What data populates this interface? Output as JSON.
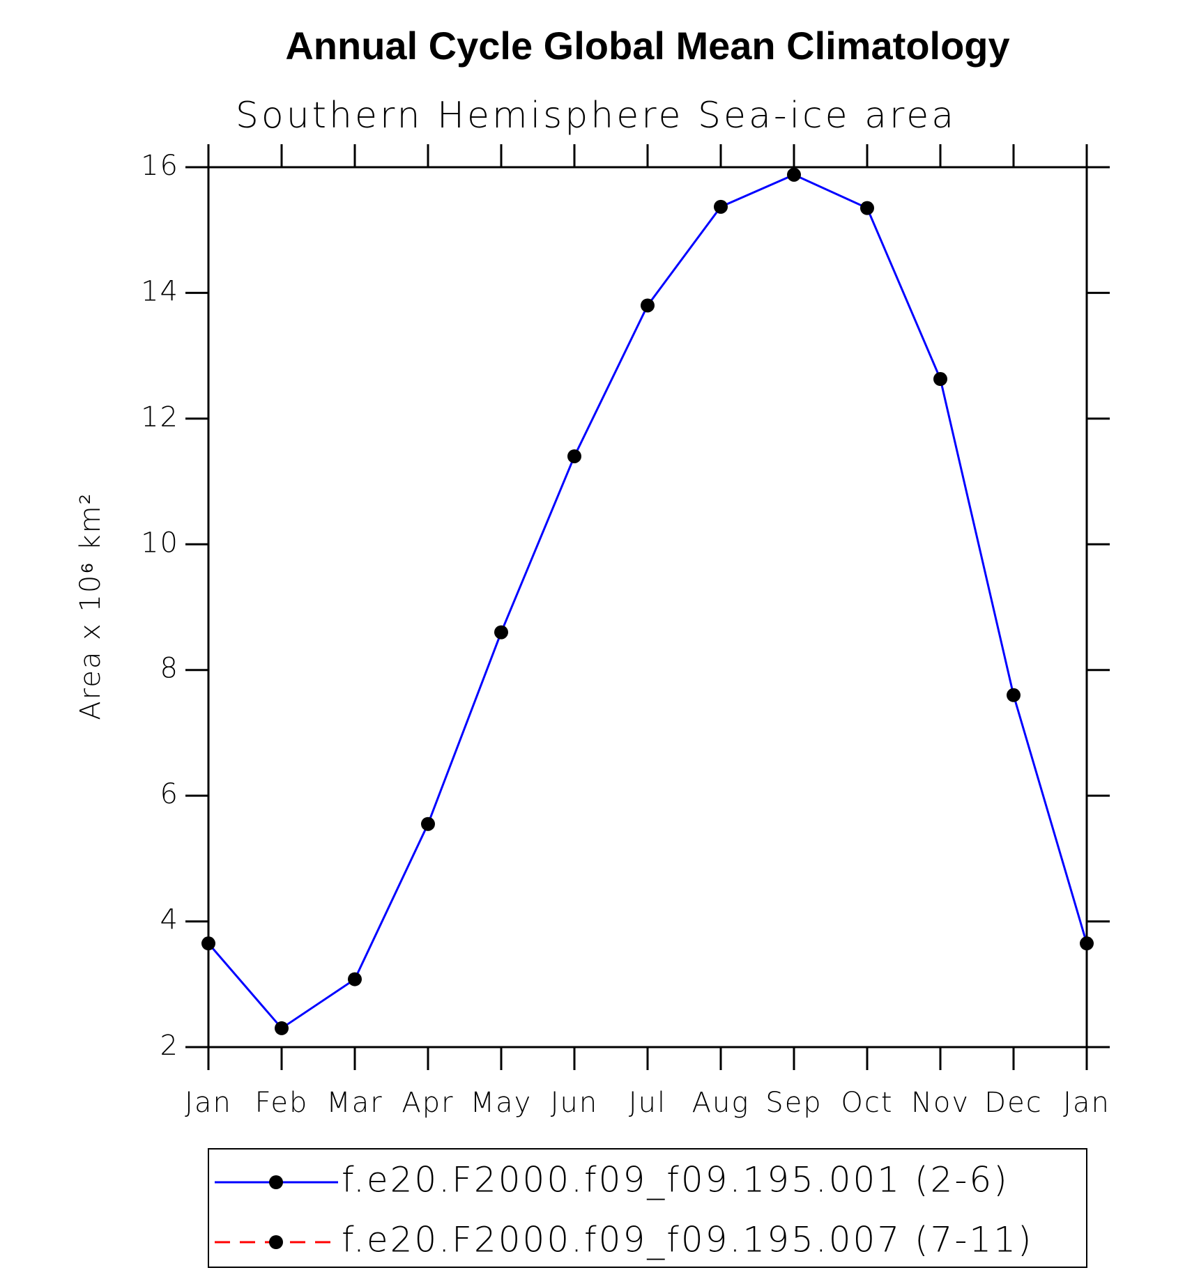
{
  "chart_data": {
    "type": "line",
    "title": "Annual Cycle Global Mean Climatology",
    "subtitle": "Southern Hemisphere Sea-ice area",
    "y_label": "Area x 10⁶ km²",
    "categories": [
      "Jan",
      "Feb",
      "Mar",
      "Apr",
      "May",
      "Jun",
      "Jul",
      "Aug",
      "Sep",
      "Oct",
      "Nov",
      "Dec",
      "Jan"
    ],
    "series": [
      {
        "name": "f.e20.F2000.f09_f09.195.001 (2-6)",
        "color": "#0000ff",
        "dash": false,
        "values": [
          3.65,
          2.3,
          3.08,
          5.55,
          8.6,
          11.4,
          13.8,
          15.37,
          15.88,
          15.35,
          12.63,
          7.6,
          3.65
        ]
      },
      {
        "name": "f.e20.F2000.f09_f09.195.007 (7-11)",
        "color": "#ff0000",
        "dash": true,
        "values": [
          null,
          null,
          null,
          null,
          null,
          null,
          null,
          null,
          null,
          null,
          null,
          null,
          null
        ]
      }
    ],
    "ylim": [
      2,
      16
    ],
    "yticks": [
      2,
      4,
      6,
      8,
      10,
      12,
      14,
      16
    ]
  }
}
